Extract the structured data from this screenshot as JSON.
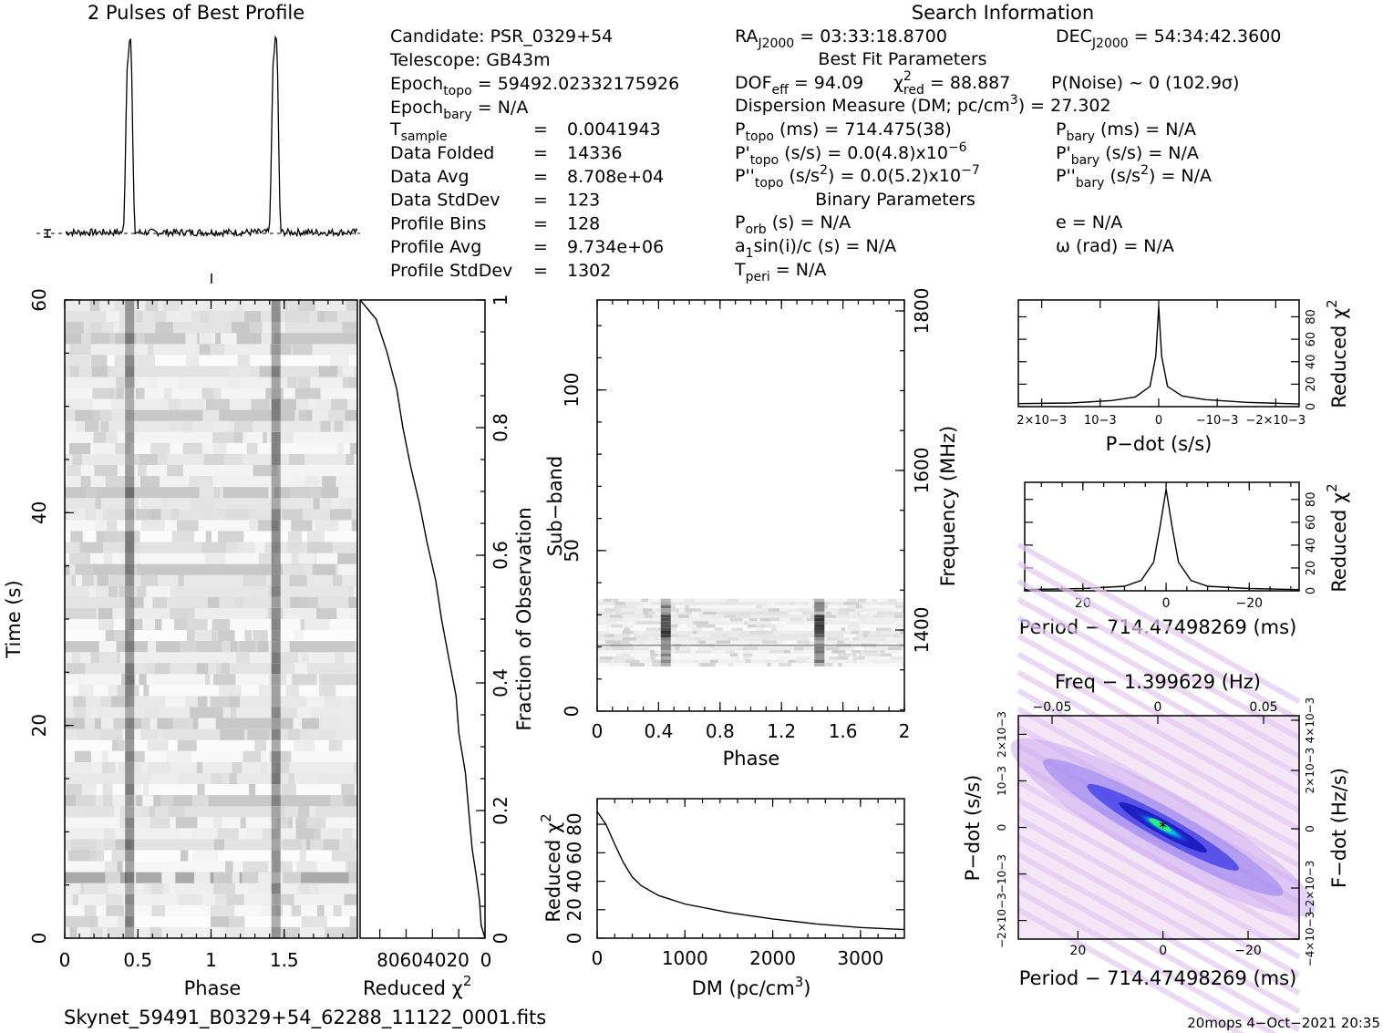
{
  "profile_title": "2 Pulses of Best Profile",
  "search_title": "Search Information",
  "info": {
    "candidate": "Candidate:  PSR_0329+54",
    "telescope": "Telescope:  GB43m",
    "epoch_topo_base": "Epoch",
    "epoch_topo_sub": "topo",
    "epoch_topo_val": " = 59492.02332175926",
    "epoch_bary_base": "Epoch",
    "epoch_bary_sub": "bary",
    "epoch_bary_val": " = N/A",
    "tsample_base": "T",
    "tsample_sub": "sample",
    "tsample_eq": "=",
    "tsample_val": "0.0041943",
    "rows": [
      {
        "label": "Data Folded",
        "value": "14336"
      },
      {
        "label": "Data Avg",
        "value": "8.708e+04"
      },
      {
        "label": "Data StdDev",
        "value": "123"
      },
      {
        "label": "Profile Bins",
        "value": "128"
      },
      {
        "label": "Profile Avg",
        "value": "9.734e+06"
      },
      {
        "label": "Profile StdDev",
        "value": "1302"
      }
    ],
    "ra_base": "RA",
    "ra_sub": "J2000",
    "ra_val": " = 03:33:18.8700",
    "dec_base": "DEC",
    "dec_sub": "J2000",
    "dec_val": " = 54:34:42.3600",
    "best_fit_title": "Best Fit Parameters",
    "dof_base": "DOF",
    "dof_sub": "eff",
    "dof_val": " = 94.09",
    "chi_sym": "χ",
    "chi_sup": "2",
    "chi_sub": "red",
    "chi_val": " = 88.887",
    "pnoise": "P(Noise) ~ 0   (102.9σ)",
    "dm_line": "Dispersion Measure (DM; pc/cm",
    "dm_sup": "3",
    "dm_val": ") = 27.302",
    "ptopo_base": "P",
    "ptopo_sub": "topo",
    "ptopo_val": " (ms) =  714.475(38)",
    "pbary_base": "P",
    "pbary_sub": "bary",
    "pbary_val": " (ms) = N/A",
    "pdtopo_base": "P'",
    "pdtopo_sub": "topo",
    "pdtopo_val": " (s/s) = 0.0(4.8)x10",
    "pdtopo_exp": "−6",
    "pdbary_base": "P'",
    "pdbary_sub": "bary",
    "pdbary_val": " (s/s) = N/A",
    "pddtopo_base": "P''",
    "pddtopo_sub": "topo",
    "pddtopo_val": " (s/s",
    "pddtopo_sup": "2",
    "pddtopo_val2": ") = 0.0(5.2)x10",
    "pddtopo_exp": "−7",
    "pddbary_base": "P''",
    "pddbary_sub": "bary",
    "pddbary_val": " (s/s",
    "pddbary_sup": "2",
    "pddbary_val2": ") = N/A",
    "binary_title": "Binary Parameters",
    "porb_base": "P",
    "porb_sub": "orb",
    "porb_val": " (s) = N/A",
    "e_line": "e = N/A",
    "a1_base": "a",
    "a1_sub": "1",
    "a1_val": "sin(i)/c (s) = N/A",
    "omega_line": "ω (rad) = N/A",
    "tperi_base": "T",
    "tperi_sub": "peri",
    "tperi_val": " = N/A"
  },
  "footer": {
    "filename": "Skynet_59491_B0329+54_62288_11122_0001.fits",
    "stamp": "20mops  4−Oct−2021 20:35"
  },
  "chart_data": [
    {
      "type": "line",
      "name": "profile",
      "title": "2 Pulses of Best Profile",
      "x_range": [
        0,
        2
      ],
      "pulse_phase": [
        0.45,
        1.45
      ],
      "baseline": 0.05,
      "peak": 1.0
    },
    {
      "type": "heatmap",
      "name": "time-phase",
      "xlabel": "Phase",
      "ylabel": "Time (s)",
      "xlim": [
        0,
        2
      ],
      "ylim": [
        0,
        60
      ],
      "x_ticks": [
        "0",
        "0.5",
        "1",
        "1.5"
      ],
      "y_ticks": [
        "0",
        "20",
        "40",
        "60"
      ],
      "pulse_phase": [
        0.45,
        1.45
      ]
    },
    {
      "type": "line",
      "name": "time-chi2",
      "xlabel": "Reduced χ2",
      "x_ticks": [
        "80",
        "60",
        "40",
        "20",
        "0"
      ],
      "xlim": [
        95,
        0
      ],
      "right_label": "Fraction of Observation",
      "right_ticks": [
        "0",
        "0.2",
        "0.4",
        "0.6",
        "0.8",
        "1"
      ],
      "points": [
        [
          0,
          0
        ],
        [
          2,
          0.02
        ],
        [
          4,
          0.06
        ],
        [
          7,
          0.1
        ],
        [
          9,
          0.14
        ],
        [
          12,
          0.2
        ],
        [
          15,
          0.26
        ],
        [
          19,
          0.32
        ],
        [
          23,
          0.38
        ],
        [
          28,
          0.44
        ],
        [
          33,
          0.5
        ],
        [
          38,
          0.56
        ],
        [
          44,
          0.62
        ],
        [
          50,
          0.68
        ],
        [
          56,
          0.74
        ],
        [
          62,
          0.8
        ],
        [
          68,
          0.86
        ],
        [
          75,
          0.92
        ],
        [
          83,
          0.97
        ],
        [
          95,
          1.0
        ]
      ]
    },
    {
      "type": "heatmap",
      "name": "subband-phase",
      "xlabel": "Phase",
      "ylabel": "Sub−band",
      "xlim": [
        0,
        2
      ],
      "ylim": [
        0,
        128
      ],
      "x_ticks": [
        "0",
        "0.4",
        "0.8",
        "1.2",
        "1.6",
        "2"
      ],
      "y_ticks": [
        "0",
        "50",
        "100"
      ],
      "right_label": "Frequency (MHz)",
      "right_ticks": [
        "1400",
        "1600",
        "1800"
      ],
      "band_subbands": [
        14,
        35
      ],
      "pulse_phase": [
        0.45,
        1.45
      ]
    },
    {
      "type": "line",
      "name": "dm-chi2",
      "xlabel": "DM (pc/cm3)",
      "ylabel": "Reduced χ2",
      "xlim": [
        0,
        3500
      ],
      "ylim": [
        0,
        98
      ],
      "x_ticks": [
        "0",
        "1000",
        "2000",
        "3000"
      ],
      "y_ticks": [
        "0",
        "20",
        "40",
        "60",
        "80"
      ],
      "points": [
        [
          0,
          89
        ],
        [
          100,
          80
        ],
        [
          200,
          66
        ],
        [
          300,
          53
        ],
        [
          400,
          43
        ],
        [
          500,
          37
        ],
        [
          700,
          30
        ],
        [
          1000,
          24
        ],
        [
          1500,
          18
        ],
        [
          2000,
          13.5
        ],
        [
          2500,
          10
        ],
        [
          3000,
          7.5
        ],
        [
          3500,
          6
        ]
      ]
    },
    {
      "type": "line",
      "name": "pdot-chi2",
      "xlabel": "P−dot (s/s)",
      "ylabel": "Reduced χ2",
      "x_ticks": [
        "2×10−3",
        "10−3",
        "0",
        "−10−3",
        "−2×10−3"
      ],
      "y_ticks": [
        "0",
        "20",
        "40",
        "60",
        "80"
      ],
      "xlim": [
        0.0024,
        -0.0024
      ],
      "ylim": [
        0,
        95
      ],
      "points": [
        [
          0.0024,
          3
        ],
        [
          0.0015,
          4
        ],
        [
          0.0008,
          6
        ],
        [
          0.0004,
          9
        ],
        [
          0.00015,
          18
        ],
        [
          5e-05,
          45
        ],
        [
          0.0,
          89
        ],
        [
          -5e-05,
          45
        ],
        [
          -0.00015,
          18
        ],
        [
          -0.0004,
          9
        ],
        [
          -0.0008,
          6
        ],
        [
          -0.0015,
          4
        ],
        [
          -0.0024,
          3
        ]
      ]
    },
    {
      "type": "line",
      "name": "period-chi2",
      "xlabel": "Period − 714.47498269 (ms)",
      "ylabel": "Reduced χ2",
      "x_ticks": [
        "20",
        "0",
        "−20"
      ],
      "y_ticks": [
        "0",
        "20",
        "40",
        "60",
        "80"
      ],
      "xlim": [
        34,
        -32
      ],
      "ylim": [
        0,
        95
      ],
      "points": [
        [
          34,
          1
        ],
        [
          20,
          2
        ],
        [
          10,
          4
        ],
        [
          6,
          9
        ],
        [
          3,
          25
        ],
        [
          1.5,
          55
        ],
        [
          0,
          89
        ],
        [
          -1.5,
          55
        ],
        [
          -3,
          25
        ],
        [
          -6,
          9
        ],
        [
          -10,
          4
        ],
        [
          -20,
          2
        ],
        [
          -32,
          1
        ]
      ]
    },
    {
      "type": "heatmap",
      "name": "period-pdot",
      "title": "Freq − 1.399629 (Hz)",
      "xlabel": "Period − 714.47498269 (ms)",
      "ylabel": "P−dot (s/s)",
      "right_label": "F−dot (Hz/s)",
      "x_ticks": [
        "20",
        "0",
        "−20"
      ],
      "top_ticks": [
        "−0.05",
        "0",
        "0.05"
      ],
      "y_ticks": [
        "2×10−3",
        "10−3",
        "0",
        "−10−3",
        "−2×10−3"
      ],
      "right_ticks": [
        "−4×10−3",
        "−2×10−3",
        "0",
        "2×10−3",
        "4×10−3"
      ],
      "xlim": [
        34,
        -32
      ],
      "ylim": [
        0.0024,
        -0.0024
      ],
      "best": [
        0,
        0
      ]
    }
  ]
}
